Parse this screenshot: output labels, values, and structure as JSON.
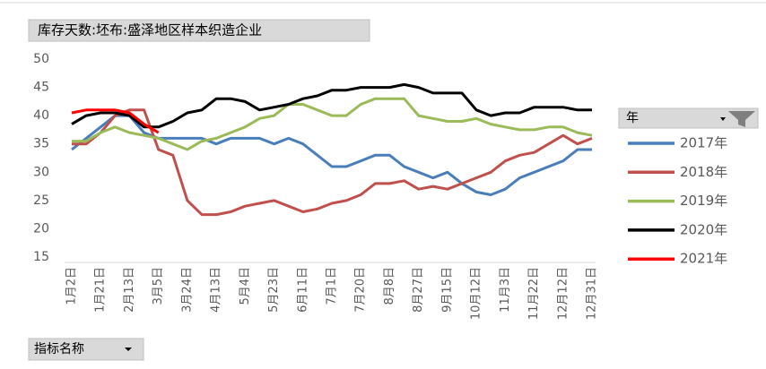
{
  "chart_data": {
    "type": "line",
    "title": "库存天数:坯布:盛泽地区样本织造企业",
    "legend_title": "年",
    "filter_button": "指标名称",
    "categories": [
      "1月2日",
      null,
      "1月21日",
      null,
      "2月13日",
      null,
      "3月5日",
      null,
      "3月24日",
      null,
      "4月13日",
      null,
      "5月4日",
      null,
      "5月23日",
      null,
      "6月11日",
      null,
      "7月1日",
      null,
      "7月20日",
      null,
      "8月8日",
      null,
      "8月27日",
      null,
      "9月15日",
      null,
      "10月12日",
      null,
      "11月3日",
      null,
      "11月22日",
      null,
      "12月12日",
      null,
      "12月31日"
    ],
    "series": [
      {
        "name": "2017年",
        "color": "#4a7ebb",
        "values": [
          34,
          36,
          38,
          40,
          40,
          37,
          36,
          36,
          36,
          36,
          35,
          36,
          36,
          36,
          35,
          36,
          35,
          33,
          31,
          31,
          32,
          33,
          33,
          31,
          30,
          29,
          30,
          28,
          26.5,
          26,
          27,
          29,
          30,
          31,
          32,
          34,
          34
        ]
      },
      {
        "name": "2018年",
        "color": "#c0504d",
        "values": [
          35,
          35,
          37,
          40,
          41,
          41,
          34,
          33,
          25,
          22.5,
          22.5,
          23,
          24,
          24.5,
          25,
          24,
          23,
          23.5,
          24.5,
          25,
          26,
          28,
          28,
          28.5,
          27,
          27.5,
          27,
          28,
          29,
          30,
          32,
          33,
          33.5,
          35,
          36.5,
          35,
          36
        ]
      },
      {
        "name": "2019年",
        "color": "#9bbb59",
        "values": [
          35.5,
          35.5,
          37,
          38,
          37,
          36.5,
          36,
          35,
          34,
          35.5,
          36,
          37,
          38,
          39.5,
          40,
          42,
          42,
          41,
          40,
          40,
          42,
          43,
          43,
          43,
          40,
          39.5,
          39,
          39,
          39.5,
          38.5,
          38,
          37.5,
          37.5,
          38,
          38,
          37,
          36.5
        ]
      },
      {
        "name": "2020年",
        "color": "#000000",
        "values": [
          38.5,
          40,
          40.5,
          40.5,
          40,
          38,
          38,
          39,
          40.5,
          41,
          43,
          43,
          42.5,
          41,
          41.5,
          42,
          43,
          43.5,
          44.5,
          44.5,
          45,
          45,
          45,
          45.5,
          45,
          44,
          44,
          44,
          41,
          40,
          40.5,
          40.5,
          41.5,
          41.5,
          41.5,
          41,
          41
        ]
      },
      {
        "name": "2021年",
        "color": "#ff0000",
        "values": [
          40.5,
          41,
          41,
          41,
          40.5,
          38.5,
          37,
          null,
          null,
          null,
          null,
          null,
          null,
          null,
          null,
          null,
          null,
          null,
          null,
          null,
          null,
          null,
          null,
          null,
          null,
          null,
          null,
          null,
          null,
          null,
          null,
          null,
          null,
          null,
          null,
          null,
          null
        ]
      }
    ],
    "ylim": [
      15,
      50
    ],
    "yticks": [
      15,
      20,
      25,
      30,
      35,
      40,
      45,
      50
    ],
    "grid": false
  }
}
